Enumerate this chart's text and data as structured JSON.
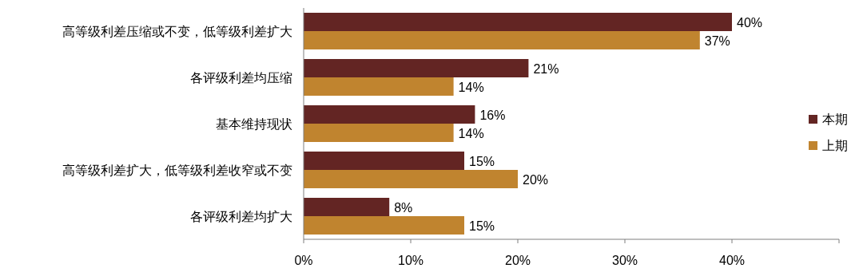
{
  "chart_data": {
    "type": "bar",
    "orientation": "horizontal",
    "categories": [
      "高等级利差压缩或不变，低等级利差扩大",
      "各评级利差均压缩",
      "基本维持现状",
      "高等级利差扩大，低等级利差收窄或不变",
      "各评级利差均扩大"
    ],
    "series": [
      {
        "name": "本期",
        "color": "#632523",
        "values": [
          40,
          21,
          16,
          15,
          8
        ],
        "value_labels": [
          "40%",
          "21%",
          "16%",
          "15%",
          "8%"
        ]
      },
      {
        "name": "上期",
        "color": "#c0842f",
        "values": [
          37,
          14,
          14,
          20,
          15
        ],
        "value_labels": [
          "37%",
          "14%",
          "14%",
          "20%",
          "15%"
        ]
      }
    ],
    "xlim": [
      0,
      50
    ],
    "xticks": [
      {
        "value": 0,
        "label": "0%"
      },
      {
        "value": 10,
        "label": "10%"
      },
      {
        "value": 20,
        "label": "20%"
      },
      {
        "value": 30,
        "label": "30%"
      },
      {
        "value": 40,
        "label": "40%"
      }
    ],
    "legend": "right",
    "grid": false
  }
}
